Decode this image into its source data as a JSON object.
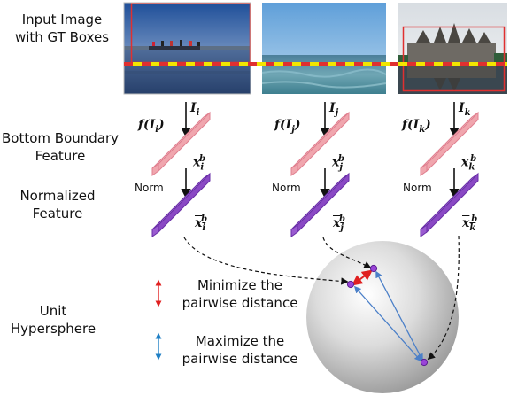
{
  "labels": {
    "input_line1": "Input Image",
    "input_line2": "with GT Boxes",
    "bottom_line1": "Bottom Boundary",
    "bottom_line2": "Feature",
    "norm_line1": "Normalized",
    "norm_line2": "Feature",
    "sphere_line1": "Unit",
    "sphere_line2": "Hypersphere"
  },
  "columns": [
    {
      "input": "I_i",
      "input_sub": "i",
      "func": "f(I_i)",
      "feat_sub": "i",
      "norm": "Norm"
    },
    {
      "input": "I_j",
      "input_sub": "j",
      "func": "f(I_j)",
      "feat_sub": "j",
      "norm": "Norm"
    },
    {
      "input": "I_k",
      "input_sub": "k",
      "func": "f(I_k)",
      "feat_sub": "k",
      "norm": "Norm"
    }
  ],
  "legend": {
    "minimize_line1": "Minimize the",
    "minimize_line2": "pairwise distance",
    "maximize_line1": "Maximize the",
    "maximize_line2": "pairwise distance"
  },
  "colors": {
    "gt_box": "#e03030",
    "boundary_line": "#f2e600",
    "feature_bar": "#f0a6ae",
    "normalized_bar": "#9a5bd0",
    "minimize_arrow": "#e02020",
    "maximize_arrow": "#1f7fc4"
  }
}
